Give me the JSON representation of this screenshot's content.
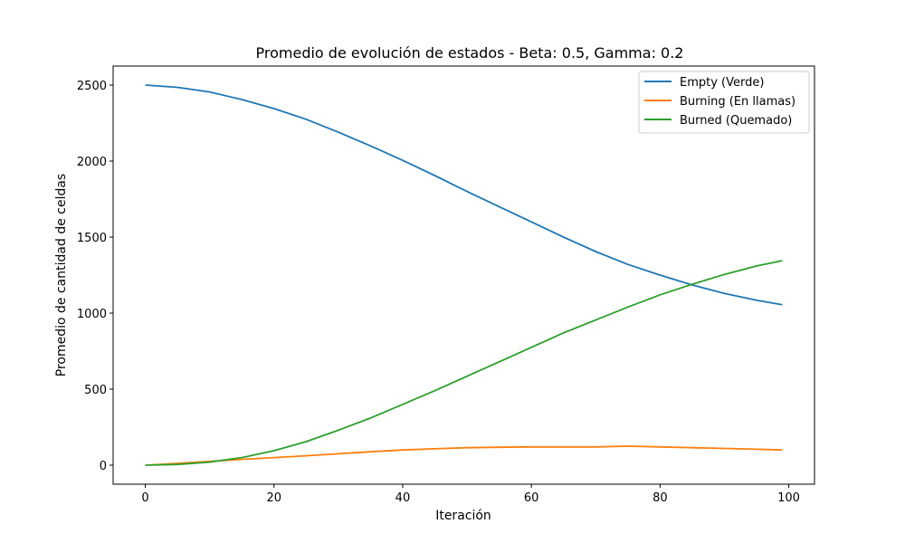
{
  "chart_data": {
    "type": "line",
    "title": "Promedio de evolución de estados - Beta: 0.5, Gamma: 0.2",
    "xlabel": "Iteración",
    "ylabel": "Promedio de cantidad de celdas",
    "xlim": [
      -5,
      104
    ],
    "ylim": [
      -125,
      2625
    ],
    "xticks": [
      0,
      20,
      40,
      60,
      80,
      100
    ],
    "yticks": [
      0,
      500,
      1000,
      1500,
      2000,
      2500
    ],
    "grid": false,
    "legend_position": "top-right",
    "series": [
      {
        "name": "Empty (Verde)",
        "color": "#1f77b4",
        "x": [
          0,
          5,
          10,
          15,
          20,
          25,
          30,
          35,
          40,
          45,
          50,
          55,
          60,
          65,
          70,
          75,
          80,
          85,
          90,
          95,
          99
        ],
        "y": [
          2500,
          2485,
          2455,
          2405,
          2345,
          2275,
          2190,
          2100,
          2005,
          1905,
          1800,
          1700,
          1600,
          1500,
          1405,
          1320,
          1250,
          1185,
          1130,
          1085,
          1055
        ]
      },
      {
        "name": "Burning (En llamas)",
        "color": "#ff7f0e",
        "x": [
          0,
          5,
          10,
          15,
          20,
          25,
          30,
          35,
          40,
          45,
          50,
          55,
          60,
          65,
          70,
          75,
          80,
          85,
          90,
          95,
          99
        ],
        "y": [
          0,
          12,
          25,
          38,
          50,
          62,
          75,
          88,
          100,
          108,
          115,
          118,
          120,
          120,
          120,
          125,
          120,
          115,
          110,
          105,
          100
        ]
      },
      {
        "name": "Burned (Quemado)",
        "color": "#2ca02c",
        "x": [
          0,
          5,
          10,
          15,
          20,
          25,
          30,
          35,
          40,
          45,
          50,
          55,
          60,
          65,
          70,
          75,
          80,
          85,
          90,
          95,
          99
        ],
        "y": [
          0,
          5,
          20,
          50,
          95,
          155,
          230,
          310,
          400,
          490,
          585,
          680,
          775,
          870,
          955,
          1040,
          1120,
          1190,
          1255,
          1310,
          1345
        ]
      }
    ]
  }
}
